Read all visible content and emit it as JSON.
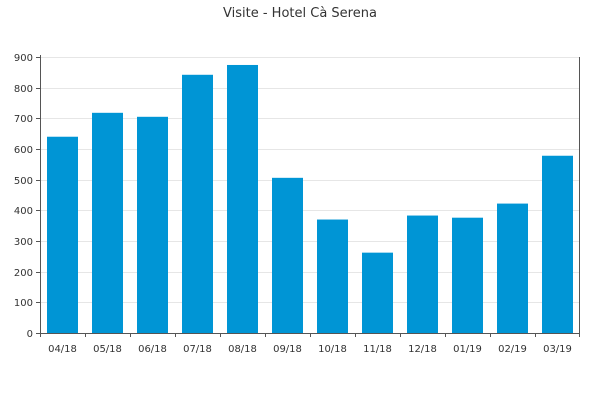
{
  "chart_data": {
    "type": "bar",
    "title": "Visite - Hotel Cà Serena",
    "xlabel": "",
    "ylabel": "",
    "categories": [
      "04/18",
      "05/18",
      "06/18",
      "07/18",
      "08/18",
      "09/18",
      "10/18",
      "11/18",
      "12/18",
      "01/19",
      "02/19",
      "03/19"
    ],
    "values": [
      640,
      718,
      705,
      842,
      874,
      506,
      370,
      262,
      383,
      376,
      422,
      578
    ],
    "ylim": [
      0,
      900
    ],
    "yticks": [
      0,
      100,
      200,
      300,
      400,
      500,
      600,
      700,
      800,
      900
    ],
    "grid": true,
    "colors": {
      "bar": "#0095d5",
      "grid": "#e6e6e6",
      "axis": "#555555",
      "text": "#333333"
    }
  }
}
